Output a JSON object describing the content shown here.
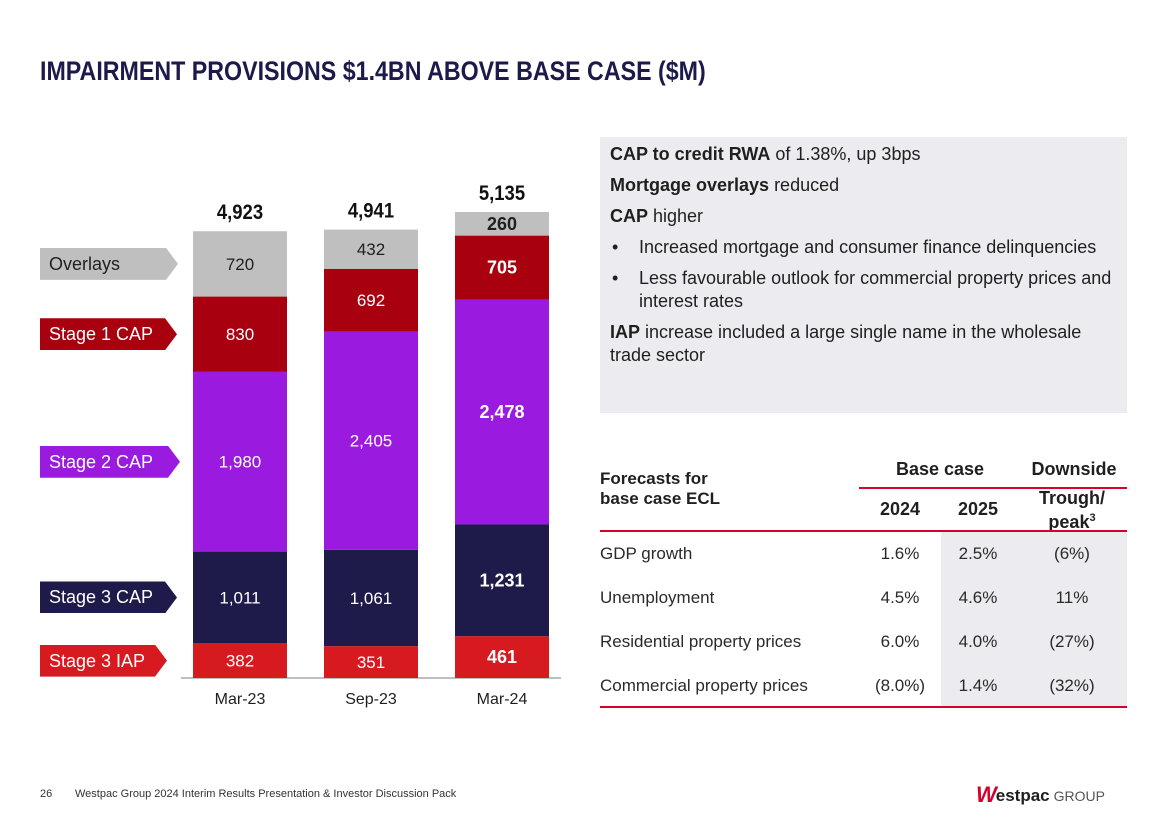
{
  "title": "IMPAIRMENT PROVISIONS $1.4BN ABOVE BASE CASE ($M)",
  "chart_data": {
    "type": "bar",
    "stacked": true,
    "categories": [
      "Mar-23",
      "Sep-23",
      "Mar-24"
    ],
    "totals": [
      "4,923",
      "4,941",
      "5,135"
    ],
    "series": [
      {
        "name": "Stage 3 IAP",
        "color": "#d71920",
        "values": [
          382,
          351,
          461
        ],
        "labels": [
          "382",
          "351",
          "461"
        ]
      },
      {
        "name": "Stage 3 CAP",
        "color": "#1e1a4a",
        "values": [
          1011,
          1061,
          1231
        ],
        "labels": [
          "1,011",
          "1,061",
          "1,231"
        ]
      },
      {
        "name": "Stage 2 CAP",
        "color": "#9b1ae0",
        "values": [
          1980,
          2405,
          2478
        ],
        "labels": [
          "1,980",
          "2,405",
          "2,478"
        ]
      },
      {
        "name": "Stage 1 CAP",
        "color": "#a8000f",
        "values": [
          830,
          692,
          705
        ],
        "labels": [
          "830",
          "692",
          "705"
        ]
      },
      {
        "name": "Overlays",
        "color": "#bfbfbf",
        "values": [
          720,
          432,
          260
        ],
        "labels": [
          "720",
          "432",
          "260"
        ]
      }
    ],
    "ylim": [
      0,
      5135
    ],
    "legend": "left",
    "emphasis_category": "Mar-24"
  },
  "commentary": {
    "line1_bold": "CAP to credit RWA",
    "line1_rest": " of 1.38%, up 3bps",
    "line2_bold": "Mortgage overlays",
    "line2_rest": " reduced",
    "line3_bold": "CAP",
    "line3_rest": " higher",
    "bullets": [
      "Increased mortgage and consumer finance delinquencies",
      "Less favourable outlook for commercial property prices and interest rates"
    ],
    "line4_bold": "IAP",
    "line4_rest": " increase included a large single name in the wholesale trade sector"
  },
  "forecasts": {
    "title_line1": "Forecasts for",
    "title_line2": "base case ECL",
    "base_case": "Base case",
    "downside": "Downside",
    "col_2024": "2024",
    "col_2025": "2025",
    "trough_line1": "Trough/",
    "trough_line2": "peak",
    "trough_sup": "3",
    "rows": [
      {
        "label": "GDP growth",
        "v2024": "1.6%",
        "v2025": "2.5%",
        "downside": "(6%)"
      },
      {
        "label": "Unemployment",
        "v2024": "4.5%",
        "v2025": "4.6%",
        "downside": "11%"
      },
      {
        "label": "Residential property prices",
        "v2024": "6.0%",
        "v2025": "4.0%",
        "downside": "(27%)"
      },
      {
        "label": "Commercial property prices",
        "v2024": "(8.0%)",
        "v2025": "1.4%",
        "downside": "(32%)"
      }
    ]
  },
  "footer": {
    "page_number": "26",
    "text": "Westpac Group 2024 Interim Results Presentation & Investor Discussion Pack"
  },
  "logo": {
    "mark": "W",
    "word": "estpac",
    "group": "GROUP"
  }
}
